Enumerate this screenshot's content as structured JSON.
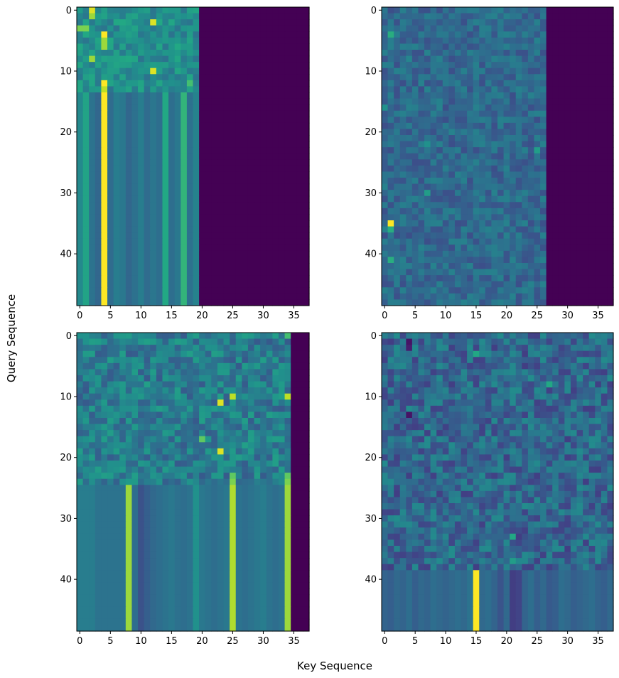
{
  "chart_data": {
    "type": "heatmap",
    "colormap": "viridis",
    "xlabel": "Key Sequence",
    "ylabel": "Query Sequence",
    "panels": [
      {
        "rows": 49,
        "cols": 38,
        "xticks": [
          0,
          5,
          10,
          15,
          20,
          25,
          30,
          35
        ],
        "yticks": [
          0,
          10,
          20,
          30,
          40
        ],
        "valid_key_len": 20,
        "region_split_row": 14,
        "col_base": [
          0.47,
          0.58,
          0.38,
          0.33,
          1.0,
          0.35,
          0.42,
          0.4,
          0.33,
          0.37,
          0.42,
          0.35,
          0.39,
          0.36,
          0.6,
          0.36,
          0.4,
          0.65,
          0.37,
          0.44
        ],
        "bright": [
          [
            0,
            2,
            0.95
          ],
          [
            1,
            2,
            0.85
          ],
          [
            3,
            0,
            0.8
          ],
          [
            3,
            1,
            0.8
          ],
          [
            4,
            4,
            1.0
          ],
          [
            5,
            4,
            0.85
          ],
          [
            6,
            4,
            0.85
          ],
          [
            2,
            12,
            0.95
          ],
          [
            8,
            2,
            0.85
          ],
          [
            10,
            12,
            0.95
          ],
          [
            12,
            4,
            1.0
          ],
          [
            13,
            4,
            0.9
          ],
          [
            12,
            18,
            0.7
          ]
        ]
      },
      {
        "rows": 49,
        "cols": 38,
        "xticks": [
          0,
          5,
          10,
          15,
          20,
          25,
          30,
          35
        ],
        "yticks": [
          0,
          10,
          20,
          30,
          40
        ],
        "valid_key_len": 27,
        "region_split_row": 49,
        "col_base": [],
        "bright": [
          [
            4,
            1,
            0.62
          ],
          [
            35,
            1,
            1.0
          ],
          [
            36,
            1,
            0.62
          ],
          [
            41,
            1,
            0.62
          ],
          [
            30,
            7,
            0.55
          ],
          [
            16,
            0,
            0.5
          ],
          [
            8,
            4,
            0.45
          ],
          [
            23,
            25,
            0.55
          ],
          [
            22,
            7,
            0.5
          ]
        ]
      },
      {
        "rows": 49,
        "cols": 38,
        "xticks": [
          0,
          5,
          10,
          15,
          20,
          25,
          30,
          35
        ],
        "yticks": [
          0,
          10,
          20,
          30,
          40
        ],
        "valid_key_len": 35,
        "region_split_row": 25,
        "col_base": [
          0.42,
          0.42,
          0.42,
          0.38,
          0.38,
          0.38,
          0.38,
          0.38,
          0.85,
          0.36,
          0.25,
          0.3,
          0.34,
          0.36,
          0.38,
          0.4,
          0.37,
          0.36,
          0.38,
          0.5,
          0.4,
          0.38,
          0.36,
          0.38,
          0.4,
          0.88,
          0.38,
          0.36,
          0.38,
          0.4,
          0.42,
          0.38,
          0.36,
          0.38,
          0.85
        ],
        "bright": [
          [
            11,
            23,
            0.95
          ],
          [
            10,
            25,
            0.9
          ],
          [
            19,
            23,
            0.95
          ],
          [
            17,
            20,
            0.75
          ],
          [
            10,
            34,
            0.9
          ],
          [
            23,
            34,
            0.75
          ],
          [
            24,
            34,
            0.8
          ],
          [
            23,
            25,
            0.75
          ],
          [
            24,
            25,
            0.8
          ],
          [
            0,
            34,
            0.7
          ]
        ]
      },
      {
        "rows": 49,
        "cols": 38,
        "xticks": [
          0,
          5,
          10,
          15,
          20,
          25,
          30,
          35
        ],
        "yticks": [
          0,
          10,
          20,
          30,
          40
        ],
        "valid_key_len": 38,
        "region_split_row": 39,
        "col_base": [
          0.32,
          0.3,
          0.34,
          0.32,
          0.36,
          0.3,
          0.34,
          0.32,
          0.36,
          0.34,
          0.32,
          0.34,
          0.36,
          0.34,
          0.38,
          1.0,
          0.34,
          0.36,
          0.32,
          0.26,
          0.34,
          0.18,
          0.2,
          0.32,
          0.36,
          0.3,
          0.34,
          0.28,
          0.3,
          0.36,
          0.34,
          0.3,
          0.32,
          0.34,
          0.36,
          0.32,
          0.3,
          0.34
        ],
        "bright": [
          [
            3,
            15,
            0.6
          ],
          [
            8,
            27,
            0.6
          ],
          [
            33,
            21,
            0.6
          ],
          [
            37,
            21,
            0.55
          ],
          [
            1,
            4,
            0.05
          ],
          [
            13,
            4,
            0.05
          ],
          [
            2,
            4,
            0.08
          ]
        ]
      }
    ]
  }
}
